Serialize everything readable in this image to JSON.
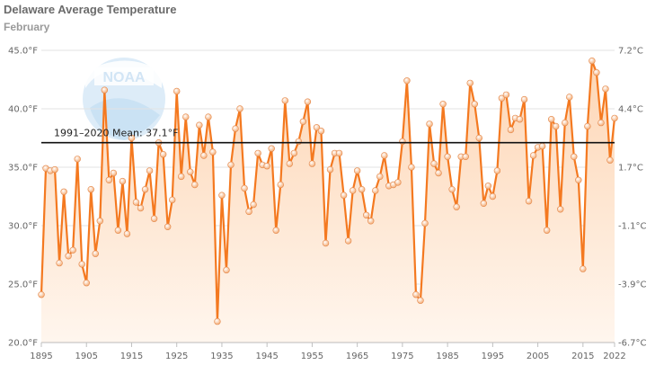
{
  "chart_data": {
    "type": "line",
    "title": "Delaware Average Temperature",
    "subtitle": "February",
    "x": [
      1895,
      1896,
      1897,
      1898,
      1899,
      1900,
      1901,
      1902,
      1903,
      1904,
      1905,
      1906,
      1907,
      1908,
      1909,
      1910,
      1911,
      1912,
      1913,
      1914,
      1915,
      1916,
      1917,
      1918,
      1919,
      1920,
      1921,
      1922,
      1923,
      1924,
      1925,
      1926,
      1927,
      1928,
      1929,
      1930,
      1931,
      1932,
      1933,
      1934,
      1935,
      1936,
      1937,
      1938,
      1939,
      1940,
      1941,
      1942,
      1943,
      1944,
      1945,
      1946,
      1947,
      1948,
      1949,
      1950,
      1951,
      1952,
      1953,
      1954,
      1955,
      1956,
      1957,
      1958,
      1959,
      1960,
      1961,
      1962,
      1963,
      1964,
      1965,
      1966,
      1967,
      1968,
      1969,
      1970,
      1971,
      1972,
      1973,
      1974,
      1975,
      1976,
      1977,
      1978,
      1979,
      1980,
      1981,
      1982,
      1983,
      1984,
      1985,
      1986,
      1987,
      1988,
      1989,
      1990,
      1991,
      1992,
      1993,
      1994,
      1995,
      1996,
      1997,
      1998,
      1999,
      2000,
      2001,
      2002,
      2003,
      2004,
      2005,
      2006,
      2007,
      2008,
      2009,
      2010,
      2011,
      2012,
      2013,
      2014,
      2015,
      2016,
      2017,
      2018,
      2019,
      2020,
      2021,
      2022
    ],
    "series": [
      {
        "values": [
          24.1,
          34.9,
          34.7,
          34.8,
          26.8,
          32.9,
          27.4,
          27.9,
          35.7,
          26.7,
          25.1,
          33.1,
          27.6,
          30.4,
          41.6,
          33.9,
          34.5,
          29.6,
          33.8,
          29.3,
          37.5,
          32.0,
          31.5,
          33.1,
          34.7,
          30.6,
          37.1,
          36.1,
          29.9,
          32.2,
          41.5,
          34.2,
          39.3,
          34.6,
          33.5,
          38.6,
          36.0,
          39.3,
          36.3,
          21.8,
          32.6,
          26.2,
          35.2,
          38.3,
          40.0,
          33.2,
          31.2,
          31.8,
          36.2,
          35.2,
          35.1,
          36.6,
          29.6,
          33.5,
          40.7,
          35.3,
          36.2,
          37.2,
          38.9,
          40.6,
          35.3,
          38.4,
          38.1,
          28.5,
          34.8,
          36.2,
          36.2,
          32.6,
          28.7,
          33.0,
          34.7,
          33.1,
          30.9,
          30.4,
          33.0,
          34.2,
          36.0,
          33.4,
          33.5,
          33.7,
          37.2,
          42.4,
          35.0,
          24.1,
          23.6,
          30.2,
          38.7,
          35.3,
          34.5,
          40.4,
          35.9,
          33.1,
          31.6,
          35.9,
          35.9,
          42.2,
          40.4,
          37.5,
          31.9,
          33.4,
          32.5,
          34.7,
          40.9,
          41.2,
          38.2,
          39.2,
          39.1,
          40.8,
          32.1,
          36.0,
          36.7,
          36.8,
          29.6,
          39.1,
          38.5,
          31.4,
          38.8,
          41.0,
          35.9,
          33.9,
          26.3,
          38.5,
          44.1,
          43.1,
          38.8,
          41.7,
          35.6,
          39.2
        ]
      }
    ],
    "y_ticks": [
      "45.0°F",
      "40.0°F",
      "35.0°F",
      "30.0°F",
      "25.0°F",
      "20.0°F"
    ],
    "y_ticks_right": [
      "7.2°C",
      "4.4°C",
      "1.7°C",
      "-1.1°C",
      "-3.9°C",
      "-6.7°C"
    ],
    "x_ticks": [
      "1895",
      "1905",
      "1915",
      "1925",
      "1935",
      "1945",
      "1955",
      "1965",
      "1975",
      "1985",
      "1995",
      "2005",
      "2015",
      "2022"
    ],
    "x_tick_values": [
      1895,
      1905,
      1915,
      1925,
      1935,
      1945,
      1955,
      1965,
      1975,
      1985,
      1995,
      2005,
      2015,
      2022
    ],
    "ylim": [
      20,
      45
    ],
    "xlim": [
      1895,
      2022
    ],
    "mean": {
      "value": 37.1,
      "label": "1991–2020 Mean: 37.1°F"
    },
    "grid": true,
    "colors": {
      "line": "#f47920",
      "marker_fill": "#f9c9a0",
      "area_top": "#fdd6b5",
      "area_bottom": "#fff6ee",
      "grid": "#e3e3e3",
      "mean": "#111111"
    }
  }
}
